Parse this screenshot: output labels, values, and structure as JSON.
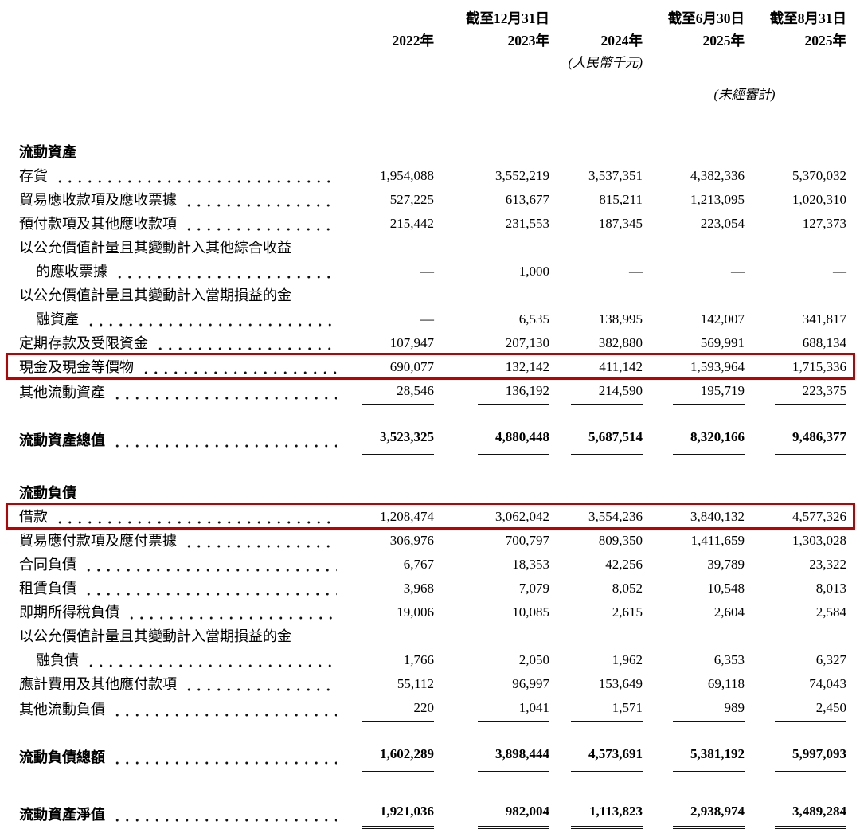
{
  "page": {
    "background": "#ffffff",
    "text_color": "#000000",
    "highlight_color": "#c00000"
  },
  "header": {
    "group_dec31": "截至12月31日",
    "group_jun30": "截至6月30日",
    "group_aug31": "截至8月31日",
    "years": [
      "2022年",
      "2023年",
      "2024年",
      "2025年",
      "2025年"
    ],
    "currency_note": "(人民幣千元)",
    "unaudited_note": "(未經審計)"
  },
  "sections": [
    {
      "title": "流動資產",
      "title_name": "section-title-current-assets",
      "position": "first",
      "rows": [
        {
          "name": "inventory-row",
          "label_lines": [
            "存貨"
          ],
          "values": [
            "1,954,088",
            "3,552,219",
            "3,537,351",
            "4,382,336",
            "5,370,032"
          ]
        },
        {
          "name": "trade-receivables-row",
          "label_lines": [
            "貿易應收款項及應收票據"
          ],
          "values": [
            "527,225",
            "613,677",
            "815,211",
            "1,213,095",
            "1,020,310"
          ]
        },
        {
          "name": "prepayments-row",
          "label_lines": [
            "預付款項及其他應收款項"
          ],
          "values": [
            "215,442",
            "231,553",
            "187,345",
            "223,054",
            "127,373"
          ]
        },
        {
          "name": "fvoci-notes-receivable-row",
          "label_lines": [
            "以公允價值計量且其變動計入其他綜合收益",
            "的應收票據"
          ],
          "values": [
            "—",
            "1,000",
            "—",
            "—",
            "—"
          ]
        },
        {
          "name": "fvtpl-financial-assets-row",
          "label_lines": [
            "以公允價值計量且其變動計入當期損益的金",
            "融資產"
          ],
          "values": [
            "—",
            "6,535",
            "138,995",
            "142,007",
            "341,817"
          ]
        },
        {
          "name": "time-deposits-restricted-funds-row",
          "label_lines": [
            "定期存款及受限資金"
          ],
          "values": [
            "107,947",
            "207,130",
            "382,880",
            "569,991",
            "688,134"
          ]
        },
        {
          "name": "cash-and-cash-equivalents-row",
          "label_lines": [
            "現金及現金等價物"
          ],
          "values": [
            "690,077",
            "132,142",
            "411,142",
            "1,593,964",
            "1,715,336"
          ],
          "highlight": true
        },
        {
          "name": "other-current-assets-row",
          "label_lines": [
            "其他流動資產"
          ],
          "values": [
            "28,546",
            "136,192",
            "214,590",
            "195,719",
            "223,375"
          ],
          "underline": "single"
        },
        {
          "name": "total-current-assets-row",
          "label_lines": [
            "流動資產總值"
          ],
          "values": [
            "3,523,325",
            "4,880,448",
            "5,687,514",
            "8,320,166",
            "9,486,377"
          ],
          "underline": "double",
          "bold": true,
          "total": true
        }
      ]
    },
    {
      "title": "流動負債",
      "title_name": "section-title-current-liabilities",
      "position": "second",
      "rows": [
        {
          "name": "borrowings-row",
          "label_lines": [
            "借款"
          ],
          "values": [
            "1,208,474",
            "3,062,042",
            "3,554,236",
            "3,840,132",
            "4,577,326"
          ],
          "highlight": true
        },
        {
          "name": "trade-payables-row",
          "label_lines": [
            "貿易應付款項及應付票據"
          ],
          "values": [
            "306,976",
            "700,797",
            "809,350",
            "1,411,659",
            "1,303,028"
          ]
        },
        {
          "name": "contract-liabilities-row",
          "label_lines": [
            "合同負債"
          ],
          "values": [
            "6,767",
            "18,353",
            "42,256",
            "39,789",
            "23,322"
          ]
        },
        {
          "name": "lease-liabilities-row",
          "label_lines": [
            "租賃負債"
          ],
          "values": [
            "3,968",
            "7,079",
            "8,052",
            "10,548",
            "8,013"
          ]
        },
        {
          "name": "current-income-tax-liabilities-row",
          "label_lines": [
            "即期所得稅負債"
          ],
          "values": [
            "19,006",
            "10,085",
            "2,615",
            "2,604",
            "2,584"
          ]
        },
        {
          "name": "fvtpl-financial-liabilities-row",
          "label_lines": [
            "以公允價值計量且其變動計入當期損益的金",
            "融負債"
          ],
          "values": [
            "1,766",
            "2,050",
            "1,962",
            "6,353",
            "6,327"
          ]
        },
        {
          "name": "accruals-other-payables-row",
          "label_lines": [
            "應計費用及其他應付款項"
          ],
          "values": [
            "55,112",
            "96,997",
            "153,649",
            "69,118",
            "74,043"
          ]
        },
        {
          "name": "other-current-liabilities-row",
          "label_lines": [
            "其他流動負債"
          ],
          "values": [
            "220",
            "1,041",
            "1,571",
            "989",
            "2,450"
          ],
          "underline": "single"
        },
        {
          "name": "total-current-liabilities-row",
          "label_lines": [
            "流動負債總額"
          ],
          "values": [
            "1,602,289",
            "3,898,444",
            "4,573,691",
            "5,381,192",
            "5,997,093"
          ],
          "underline": "double",
          "bold": true,
          "total": true
        }
      ]
    }
  ],
  "net_row": {
    "name": "net-current-assets-row",
    "label_lines": [
      "流動資產淨值"
    ],
    "values": [
      "1,921,036",
      "982,004",
      "1,113,823",
      "2,938,974",
      "3,489,284"
    ],
    "underline": "double",
    "bold": true,
    "net": true
  }
}
